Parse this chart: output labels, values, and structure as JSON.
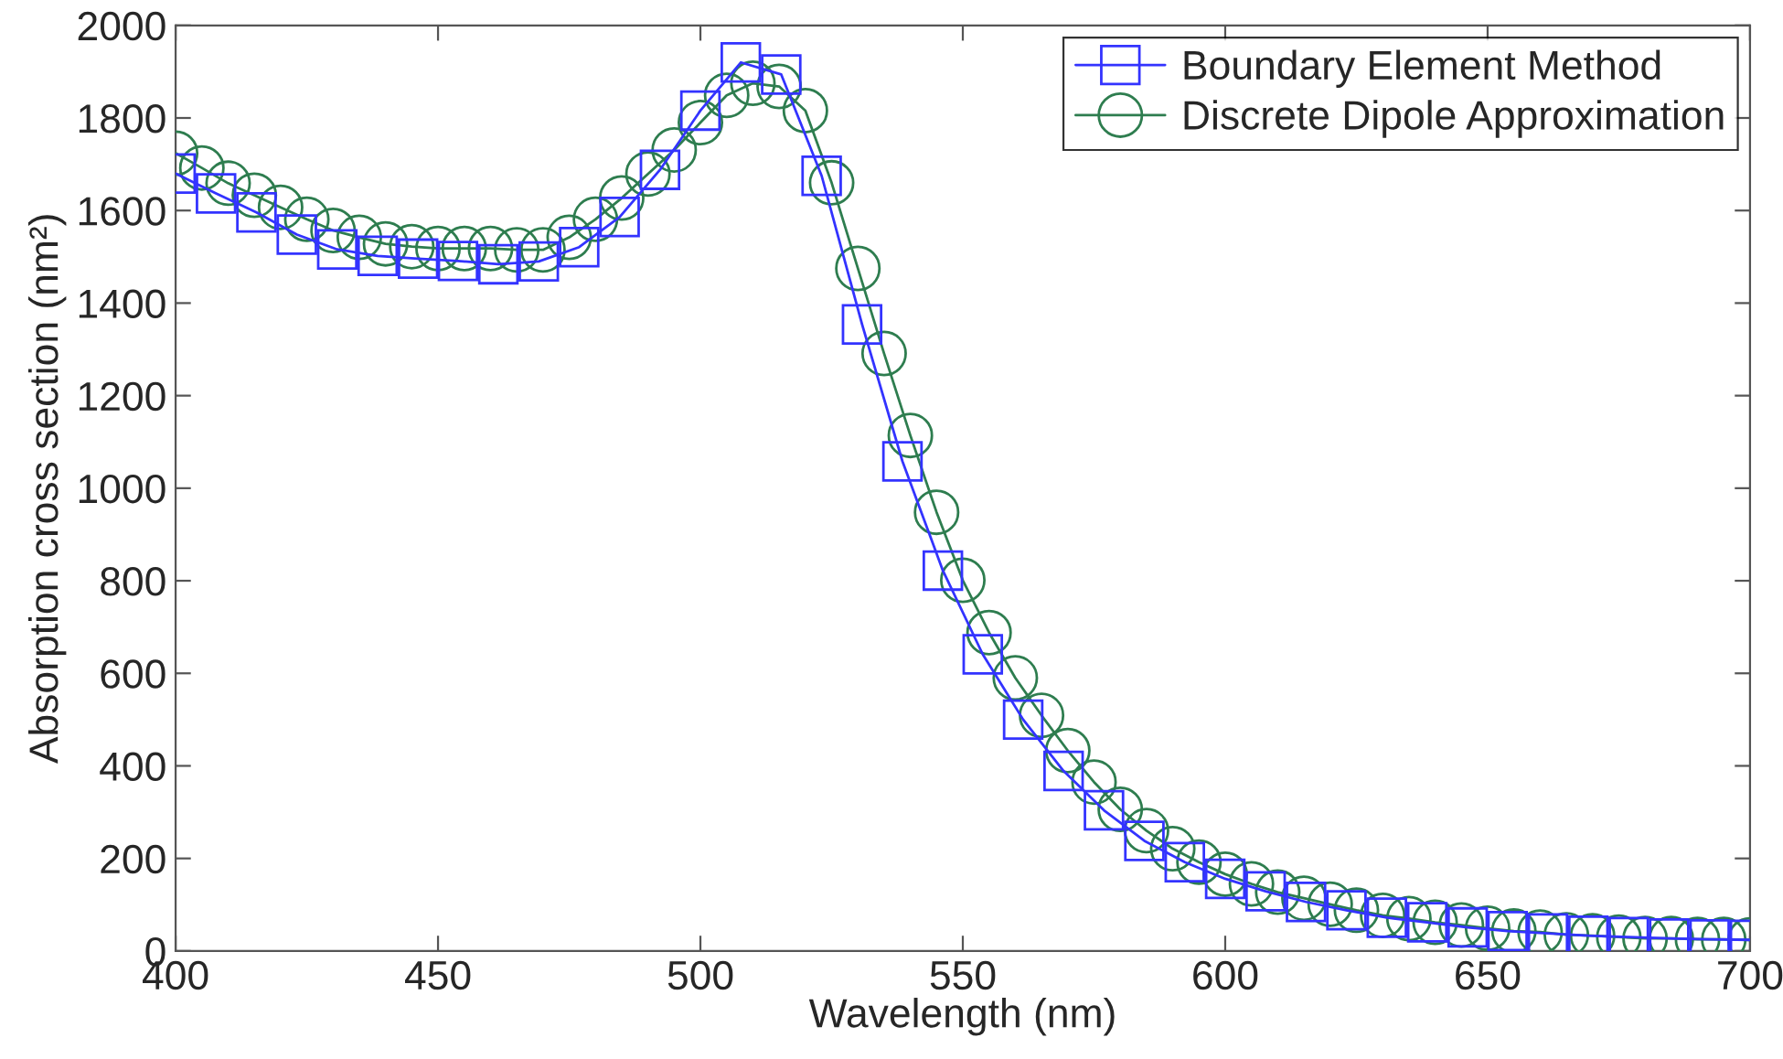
{
  "chart_data": {
    "type": "line",
    "xlabel": "Wavelength (nm)",
    "ylabel": "Absorption cross section (nm²)",
    "xlim": [
      400,
      700
    ],
    "xticks": [
      400,
      450,
      500,
      550,
      600,
      650,
      700
    ],
    "ylim": [
      0,
      2000
    ],
    "yticks": [
      0,
      200,
      400,
      600,
      800,
      1000,
      1200,
      1400,
      1600,
      1800,
      2000
    ],
    "grid": false,
    "legend": "top right",
    "line_style": "solid",
    "series": [
      {
        "name": "Boundary Element Method",
        "color": "#3333ff",
        "marker": "square",
        "x": [
          400,
          407.7,
          415.4,
          423.1,
          430.8,
          438.5,
          446.2,
          453.8,
          461.5,
          469.2,
          476.9,
          484.6,
          492.3,
          500,
          507.7,
          515.4,
          523.1,
          530.8,
          538.5,
          546.2,
          553.8,
          561.5,
          569.2,
          576.9,
          584.6,
          592.3,
          600,
          607.7,
          615.4,
          623.1,
          630.8,
          638.5,
          646.2,
          653.8,
          661.5,
          669.2,
          676.9,
          684.6,
          692.3,
          700
        ],
        "values": [
          1680,
          1637,
          1596,
          1548,
          1516,
          1502,
          1496,
          1491,
          1484,
          1490,
          1521,
          1586,
          1688,
          1816,
          1920,
          1894,
          1675,
          1354,
          1058,
          822,
          641,
          500,
          389,
          304,
          238,
          192,
          156,
          129,
          106,
          88,
          72,
          62,
          51,
          43,
          38,
          33,
          30,
          27,
          25,
          24
        ]
      },
      {
        "name": "Discrete Dipole Approximation",
        "color": "#2e7d4f",
        "marker": "circle",
        "x": [
          400,
          405,
          410,
          415,
          420,
          425,
          430,
          435,
          440,
          445,
          450,
          455,
          460,
          465,
          470,
          475,
          480,
          485,
          490,
          495,
          500,
          505,
          510,
          515,
          520,
          525,
          530,
          535,
          540,
          545,
          550,
          555,
          560,
          565,
          570,
          575,
          580,
          585,
          590,
          595,
          600,
          605,
          610,
          615,
          620,
          625,
          630,
          635,
          640,
          645,
          650,
          655,
          660,
          665,
          670,
          675,
          680,
          685,
          690,
          695,
          700
        ],
        "values": [
          1724,
          1692,
          1659,
          1633,
          1607,
          1581,
          1557,
          1542,
          1528,
          1522,
          1518,
          1518,
          1518,
          1515,
          1515,
          1542,
          1581,
          1627,
          1679,
          1731,
          1790,
          1849,
          1875,
          1868,
          1816,
          1660,
          1475,
          1291,
          1114,
          948,
          801,
          688,
          590,
          509,
          433,
          365,
          306,
          260,
          221,
          192,
          166,
          145,
          127,
          114,
          101,
          88,
          77,
          70,
          62,
          56,
          49,
          43,
          41,
          35,
          33,
          30,
          27,
          27,
          25,
          25,
          24
        ]
      }
    ]
  }
}
